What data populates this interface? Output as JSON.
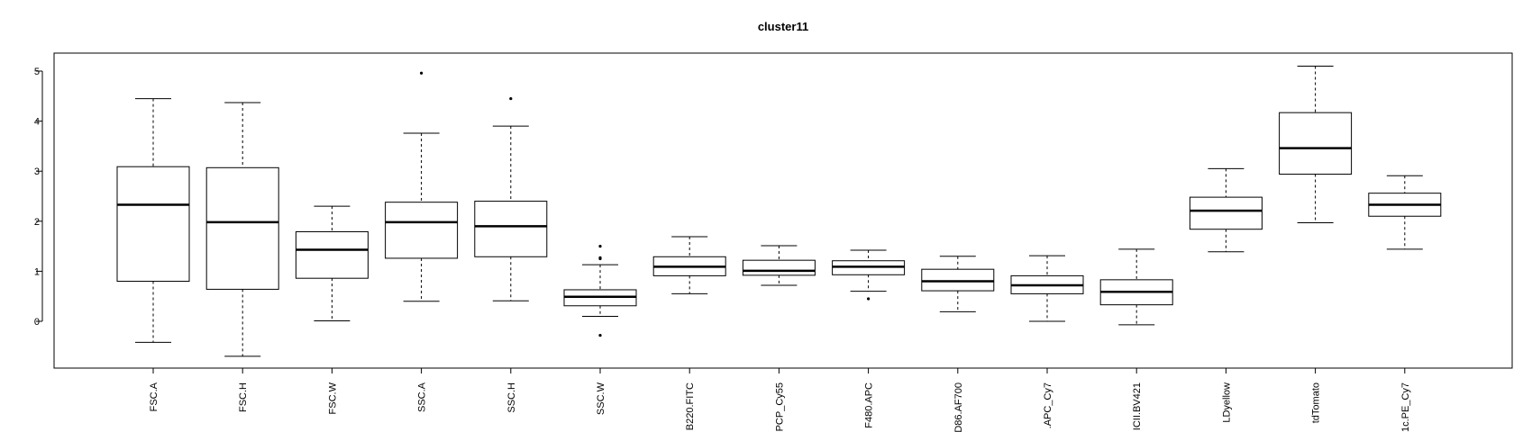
{
  "chart_data": {
    "type": "boxplot",
    "title": "cluster11",
    "xlabel": "",
    "ylabel": "",
    "ylim": [
      -0.95,
      5.35
    ],
    "yticks": [
      "0",
      "1",
      "2",
      "3",
      "4",
      "5"
    ],
    "grid": false,
    "categories": [
      "FSC.A",
      "FSC.H",
      "FSC.W",
      "SSC.A",
      "SSC.H",
      "SSC.W",
      "B220.FITC",
      "PCP_Cy55",
      "F480.APC",
      "D86.AF700",
      ".APC_Cy7",
      "ICII.BV421",
      "LDyellow",
      "tdTomato",
      "1c.PE_Cy7"
    ],
    "series": [
      {
        "boxes": [
          {
            "min": -0.42,
            "q1": 0.8,
            "median": 2.33,
            "q3": 3.09,
            "max": 4.45,
            "outliers": []
          },
          {
            "min": -0.7,
            "q1": 0.64,
            "median": 1.98,
            "q3": 3.07,
            "max": 4.37,
            "outliers": []
          },
          {
            "min": 0.01,
            "q1": 0.86,
            "median": 1.43,
            "q3": 1.79,
            "max": 2.3,
            "outliers": []
          },
          {
            "min": 0.4,
            "q1": 1.26,
            "median": 1.98,
            "q3": 2.38,
            "max": 3.76,
            "outliers": [
              4.96
            ]
          },
          {
            "min": 0.41,
            "q1": 1.29,
            "median": 1.9,
            "q3": 2.4,
            "max": 3.9,
            "outliers": [
              4.45
            ]
          },
          {
            "min": 0.1,
            "q1": 0.31,
            "median": 0.49,
            "q3": 0.63,
            "max": 1.13,
            "outliers": [
              1.25,
              1.27,
              1.5,
              -0.28
            ]
          },
          {
            "min": 0.55,
            "q1": 0.91,
            "median": 1.09,
            "q3": 1.29,
            "max": 1.69,
            "outliers": []
          },
          {
            "min": 0.72,
            "q1": 0.92,
            "median": 1.01,
            "q3": 1.22,
            "max": 1.51,
            "outliers": []
          },
          {
            "min": 0.6,
            "q1": 0.93,
            "median": 1.09,
            "q3": 1.21,
            "max": 1.42,
            "outliers": [
              0.45
            ]
          },
          {
            "min": 0.19,
            "q1": 0.61,
            "median": 0.8,
            "q3": 1.04,
            "max": 1.3,
            "outliers": []
          },
          {
            "min": 0.0,
            "q1": 0.55,
            "median": 0.72,
            "q3": 0.91,
            "max": 1.31,
            "outliers": []
          },
          {
            "min": -0.07,
            "q1": 0.33,
            "median": 0.59,
            "q3": 0.83,
            "max": 1.44,
            "outliers": []
          },
          {
            "min": 1.39,
            "q1": 1.84,
            "median": 2.21,
            "q3": 2.48,
            "max": 3.05,
            "outliers": []
          },
          {
            "min": 1.97,
            "q1": 2.94,
            "median": 3.46,
            "q3": 4.17,
            "max": 5.1,
            "outliers": []
          },
          {
            "min": 1.44,
            "q1": 2.1,
            "median": 2.33,
            "q3": 2.56,
            "max": 2.91,
            "outliers": []
          }
        ]
      }
    ],
    "colors": {
      "box_stroke": "#000000",
      "box_fill": "#ffffff",
      "background": "#ffffff"
    }
  }
}
